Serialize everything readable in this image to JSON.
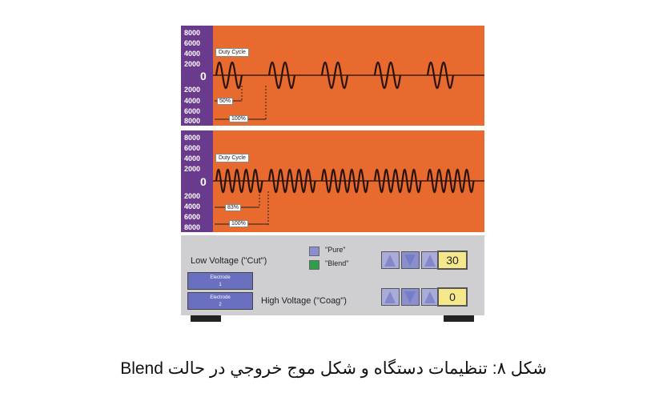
{
  "scope_top": {
    "ticks": [
      "8000",
      "6000",
      "4000",
      "2000",
      "0",
      "2000",
      "4000",
      "6000",
      "8000"
    ],
    "duty_label": "Duty Cycle",
    "labels": [
      "50%",
      "100%"
    ]
  },
  "scope_bottom": {
    "ticks": [
      "8000",
      "6000",
      "4000",
      "2000",
      "0",
      "2000",
      "4000",
      "6000",
      "8000"
    ],
    "duty_label": "Duty Cycle",
    "labels": [
      "83%",
      "100%"
    ]
  },
  "controls": {
    "low_voltage_label": "Low Voltage (\"Cut\")",
    "high_voltage_label": "High Voltage (\"Coag\")",
    "legend_pure": "\"Pure\"",
    "legend_blend": "\"Blend\"",
    "electrode1": [
      "Electrode",
      "1"
    ],
    "electrode2": [
      "Electrode",
      "2"
    ],
    "low_value": "30",
    "high_value": "0"
  },
  "colors": {
    "scope_bg": "#e86a2e",
    "axis_bg": "#6a3a8c",
    "pure": "#8b8fd0",
    "blend": "#2e9e4a",
    "value_box": "#f5e88a"
  },
  "caption": "شكل ٨: تنظيمات دستگاه و شكل موج خروجي در حالت Blend"
}
